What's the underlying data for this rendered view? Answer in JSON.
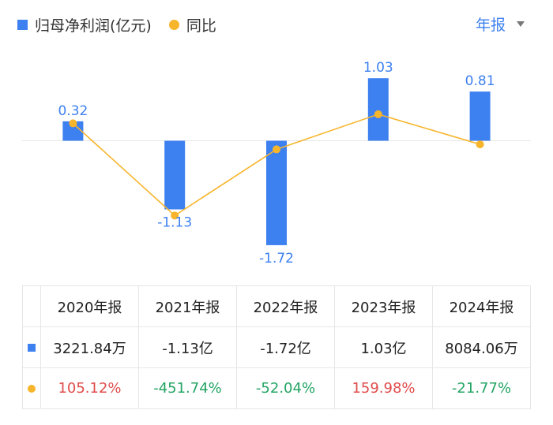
{
  "legend": {
    "bar_label": "归母净利润(亿元)",
    "line_label": "同比"
  },
  "period_selector": {
    "label": "年报"
  },
  "chart_data": {
    "type": "bar",
    "categories": [
      "2020年报",
      "2021年报",
      "2022年报",
      "2023年报",
      "2024年报"
    ],
    "series": [
      {
        "name": "归母净利润(亿元)",
        "type": "bar",
        "values": [
          0.32,
          -1.13,
          -1.72,
          1.03,
          0.81
        ]
      },
      {
        "name": "同比",
        "type": "line",
        "values": [
          105.12,
          -451.74,
          -52.04,
          159.98,
          -21.77
        ]
      }
    ],
    "colors": {
      "bar": "#3d80f0",
      "line": "#f7b52c"
    }
  },
  "table": {
    "headers": [
      "2020年报",
      "2021年报",
      "2022年报",
      "2023年报",
      "2024年报"
    ],
    "profit_row": [
      "3221.84万",
      "-1.13亿",
      "-1.72亿",
      "1.03亿",
      "8084.06万"
    ],
    "growth_row": [
      "105.12%",
      "-451.74%",
      "-52.04%",
      "159.98%",
      "-21.77%"
    ]
  }
}
